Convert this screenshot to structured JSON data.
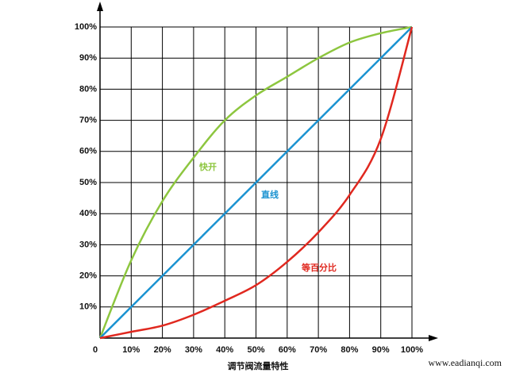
{
  "chart_data": {
    "type": "line",
    "title": "调节阀流量特性",
    "watermark": "www.eadianqi.com",
    "x": [
      0,
      10,
      20,
      30,
      40,
      50,
      60,
      70,
      80,
      90,
      100
    ],
    "series": [
      {
        "name": "快开",
        "color": "#8dc63f",
        "values": [
          0,
          25,
          44,
          58,
          70,
          78,
          84,
          90,
          95,
          98,
          100
        ]
      },
      {
        "name": "直线",
        "color": "#1b93d1",
        "values": [
          0,
          10,
          20,
          30,
          40,
          50,
          60,
          70,
          80,
          90,
          100
        ]
      },
      {
        "name": "等百分比",
        "color": "#e0281f",
        "values": [
          0,
          2,
          4,
          7.5,
          12,
          17,
          24.5,
          34,
          46,
          64,
          100
        ]
      }
    ],
    "xlim": [
      0,
      100
    ],
    "ylim": [
      0,
      100
    ],
    "xticks": [
      0,
      {
        "value": 10,
        "label": "10%"
      },
      {
        "value": 20,
        "label": "20%"
      },
      {
        "value": 30,
        "label": "30%"
      },
      {
        "value": 40,
        "label": "40%"
      },
      {
        "value": 50,
        "label": "50%"
      },
      {
        "value": 60,
        "label": "60%"
      },
      {
        "value": 70,
        "label": "70%"
      },
      {
        "value": 80,
        "label": "80%"
      },
      {
        "value": 90,
        "label": "90%"
      },
      {
        "value": 100,
        "label": "100%"
      }
    ],
    "yticks": [
      {
        "value": 10,
        "label": "10%"
      },
      {
        "value": 20,
        "label": "20%"
      },
      {
        "value": 30,
        "label": "30%"
      },
      {
        "value": 40,
        "label": "40%"
      },
      {
        "value": 50,
        "label": "50%"
      },
      {
        "value": 60,
        "label": "60%"
      },
      {
        "value": 70,
        "label": "70%"
      },
      {
        "value": 80,
        "label": "80%"
      },
      {
        "value": 90,
        "label": "90%"
      },
      {
        "value": 100,
        "label": "100%"
      }
    ],
    "grid": true
  }
}
